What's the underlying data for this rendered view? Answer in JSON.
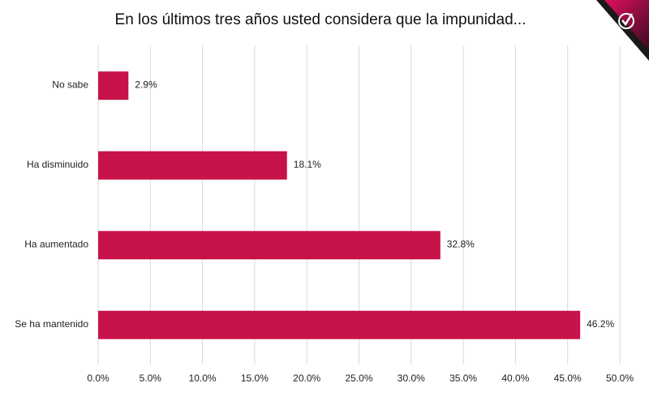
{
  "chart_data": {
    "type": "bar",
    "orientation": "horizontal",
    "title": "En los últimos tres años usted considera que la impunidad...",
    "categories": [
      "No sabe",
      "Ha disminuido",
      "Ha aumentado",
      "Se ha mantenido"
    ],
    "values": [
      2.9,
      18.1,
      32.8,
      46.2
    ],
    "value_labels": [
      "2.9%",
      "18.1%",
      "32.8%",
      "46.2%"
    ],
    "color": "#c8124a",
    "xlim": [
      0,
      50
    ],
    "xticks": [
      {
        "value": 0,
        "label": "0.0%"
      },
      {
        "value": 5,
        "label": "5.0%"
      },
      {
        "value": 10,
        "label": "10.0%"
      },
      {
        "value": 15,
        "label": "15.0%"
      },
      {
        "value": 20,
        "label": "20.0%"
      },
      {
        "value": 25,
        "label": "25.0%"
      },
      {
        "value": 30,
        "label": "30.0%"
      },
      {
        "value": 35,
        "label": "35.0%"
      },
      {
        "value": 40,
        "label": "40.0%"
      },
      {
        "value": 45,
        "label": "45.0%"
      },
      {
        "value": 50,
        "label": "50.0%"
      }
    ],
    "grid": true
  }
}
